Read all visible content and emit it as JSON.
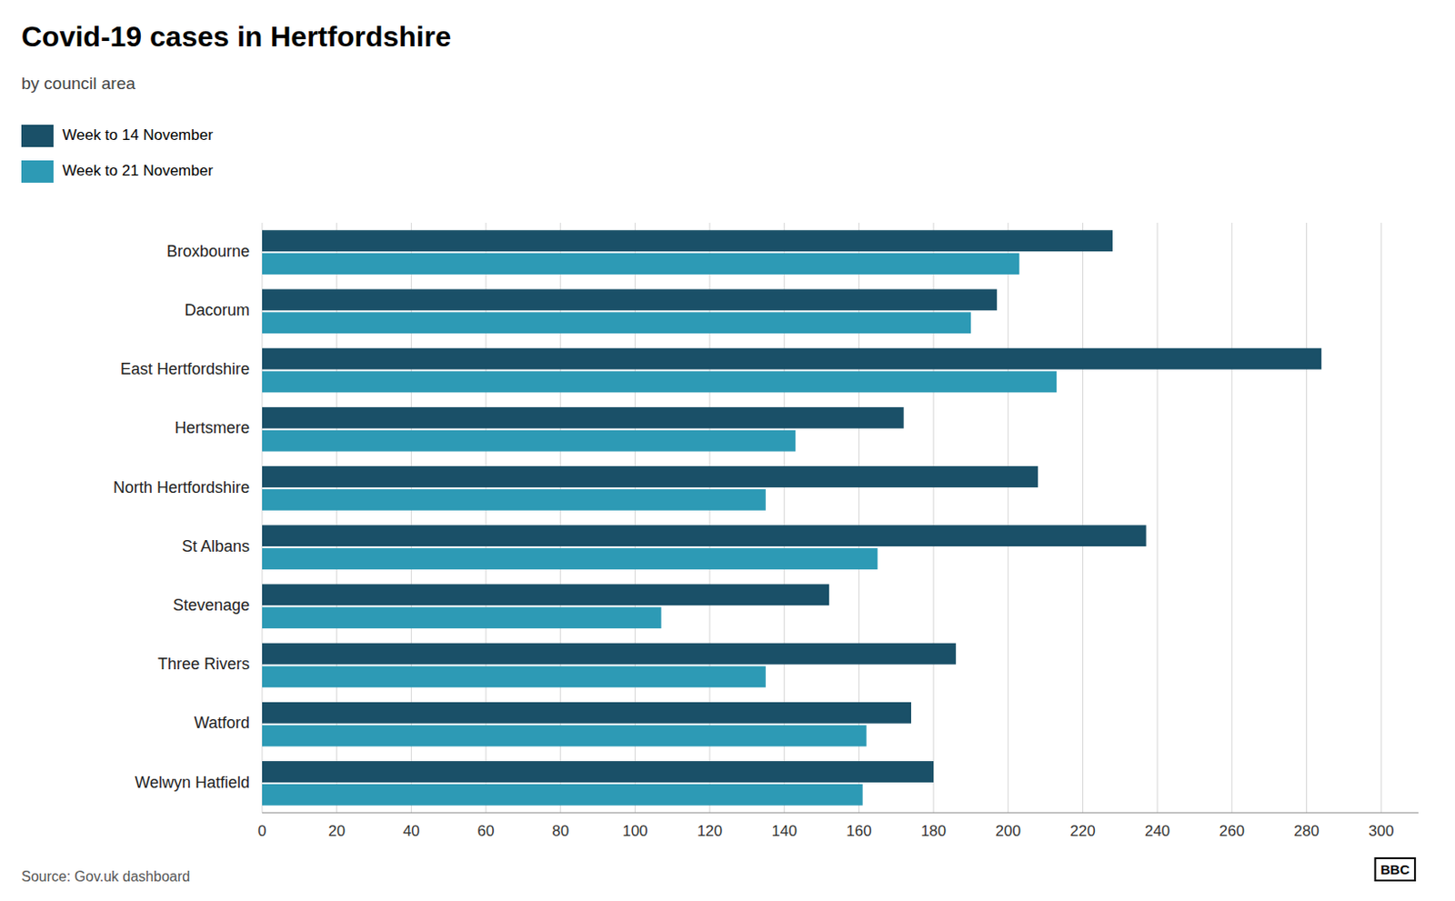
{
  "chart_data": {
    "type": "bar",
    "orientation": "horizontal",
    "title": "Covid-19 cases in Hertfordshire",
    "subtitle": "by council area",
    "source": "Source: Gov.uk dashboard",
    "annotations": [
      "BBC"
    ],
    "categories": [
      "Broxbourne",
      "Dacorum",
      "East Hertfordshire",
      "Hertsmere",
      "North Hertfordshire",
      "St Albans",
      "Stevenage",
      "Three Rivers",
      "Watford",
      "Welwyn Hatfield"
    ],
    "series": [
      {
        "name": "Week to 14 November",
        "color": "#1a5068",
        "values": [
          228,
          197,
          284,
          172,
          208,
          237,
          152,
          186,
          174,
          180
        ]
      },
      {
        "name": "Week to 21 November",
        "color": "#2d9ab5",
        "values": [
          203,
          190,
          213,
          143,
          135,
          165,
          107,
          135,
          162,
          161
        ]
      }
    ],
    "xlim": [
      0,
      310
    ],
    "xticks": [
      0,
      20,
      40,
      60,
      80,
      100,
      120,
      140,
      160,
      180,
      200,
      220,
      240,
      260,
      280,
      300
    ],
    "grid": true,
    "legend": "top-left"
  }
}
